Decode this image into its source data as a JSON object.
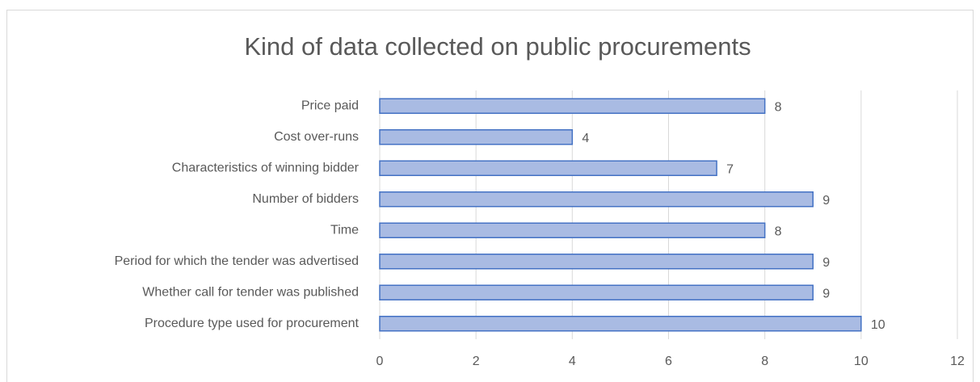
{
  "chart_data": {
    "type": "barh",
    "title": "Kind of data collected on public procurements",
    "categories": [
      "Price paid",
      "Cost over-runs",
      "Characteristics of winning bidder",
      "Number of bidders",
      "Time",
      "Period for which the tender was advertised",
      "Whether call for tender was published",
      "Procedure type used for procurement"
    ],
    "values": [
      8,
      4,
      7,
      9,
      8,
      9,
      9,
      10
    ],
    "color": "#a9bbe3",
    "edgecolor": "#4472c4",
    "xlim": [
      0,
      12
    ],
    "xticks": [
      0,
      2,
      4,
      6,
      8,
      10,
      12
    ],
    "grid": true
  }
}
